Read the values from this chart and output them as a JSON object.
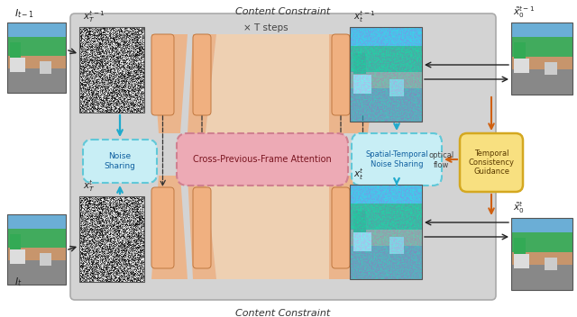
{
  "fig_width": 6.4,
  "fig_height": 3.52,
  "bg_color": "#ffffff",
  "main_box_color": "#d3d3d3",
  "orange_fill": "#f0b080",
  "orange_fill_light": "#f8d0a8",
  "pink_fill": "#d08090",
  "pink_fill_light": "#edaab5",
  "cyan_box_color": "#60c8d8",
  "cyan_box_fill": "#c8eef5",
  "yellow_box_color": "#d4a820",
  "yellow_box_fill": "#f8e080",
  "title_top": "Content Constraint",
  "title_bottom": "Content Constraint",
  "label_tsteps": "× T steps",
  "label_noise_sharing": "Noise\nSharing",
  "label_cross_attn": "Cross-Previous-Frame Attention",
  "label_spatial_temporal": "Spatial-Temporal\nNoise Sharing",
  "label_temporal": "Temporal\nConsistency\nGuidance",
  "label_optical_flow": "optical\nflow",
  "label_It1": "$I_{t-1}$",
  "label_It": "$I_t$",
  "label_xt1_top": "$x_T^{t-1}$",
  "label_xt_bot": "$x_T^{t}$",
  "label_xt1_right_top": "$x_t^{t-1}$",
  "label_xt_right_bot": "$x_t^{t}$",
  "label_x0t1_top": "$\\tilde{x}_0^{t-1}$",
  "label_x0t_bot": "$\\tilde{x}_0^{t}$"
}
